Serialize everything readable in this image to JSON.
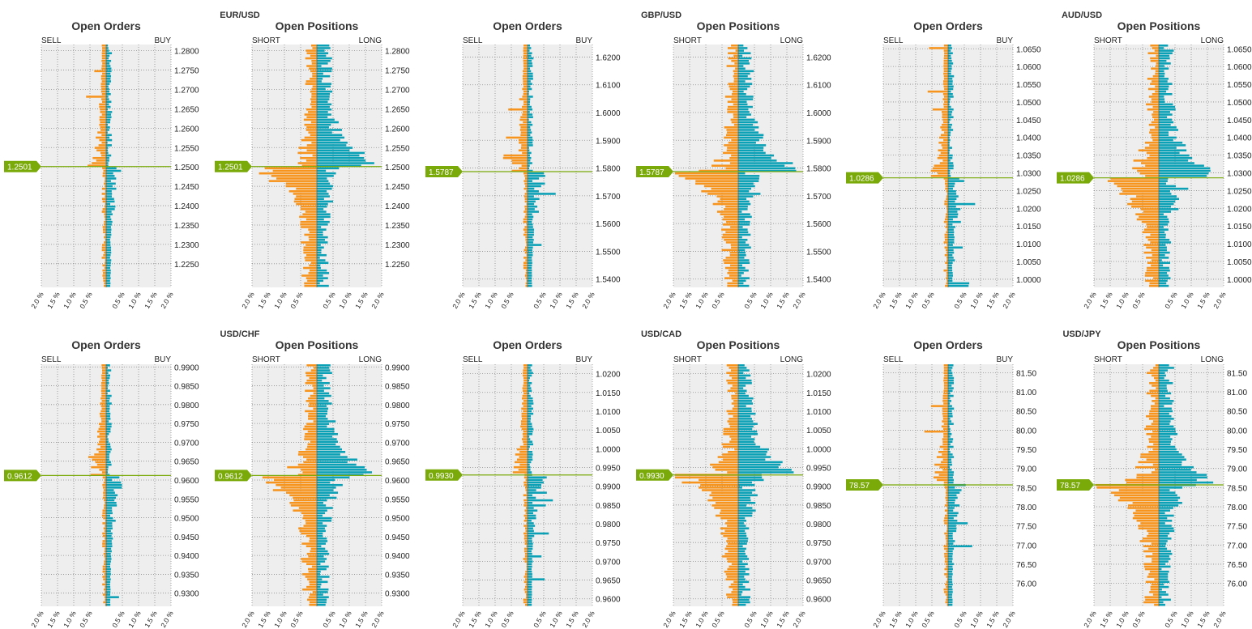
{
  "colors": {
    "sell": "#f7941d",
    "buy": "#0aa0b5",
    "price": "#7aaa0a",
    "plot_bg": "#eeeeee",
    "grid": "#8a8a8a"
  },
  "x_ticks": [
    "2.0 %",
    "1.5 %",
    "1.0 %",
    "0.5 %",
    "0.5 %",
    "1.0 %",
    "1.5 %",
    "2.0 %"
  ],
  "pairs": [
    {
      "name": "EUR/USD",
      "price": 1.2501,
      "price_label": "1.2501",
      "y_range": [
        1.2189,
        1.2816
      ],
      "y_ticks": [
        "1.2800",
        "1.2750",
        "1.2700",
        "1.2650",
        "1.2600",
        "1.2550",
        "1.2500",
        "1.2450",
        "1.2400",
        "1.2350",
        "1.2300",
        "1.2250"
      ],
      "orders_seed": 11,
      "positions_seed": 12
    },
    {
      "name": "GBP/USD",
      "price": 1.5787,
      "price_label": "1.5787",
      "y_range": [
        1.537,
        1.6245
      ],
      "y_ticks": [
        "1.6200",
        "1.6100",
        "1.6000",
        "1.5900",
        "1.5800",
        "1.5700",
        "1.5600",
        "1.5500",
        "1.5400"
      ],
      "orders_seed": 21,
      "positions_seed": 22
    },
    {
      "name": "AUD/USD",
      "price": 1.0286,
      "price_label": "1.0286",
      "y_range": [
        0.9977,
        1.0662
      ],
      "y_ticks": [
        "1.0650",
        "1.0600",
        "1.0550",
        "1.0500",
        "1.0450",
        "1.0400",
        "1.0350",
        "1.0300",
        "1.0250",
        "1.0200",
        "1.0150",
        "1.0100",
        "1.0050",
        "1.0000"
      ],
      "orders_seed": 31,
      "positions_seed": 32
    },
    {
      "name": "USD/CHF",
      "price": 0.9612,
      "price_label": "0.9612",
      "y_range": [
        0.9265,
        0.9907
      ],
      "y_ticks": [
        "0.9900",
        "0.9850",
        "0.9800",
        "0.9750",
        "0.9700",
        "0.9650",
        "0.9600",
        "0.9550",
        "0.9500",
        "0.9450",
        "0.9400",
        "0.9350",
        "0.9300"
      ],
      "orders_seed": 41,
      "positions_seed": 42
    },
    {
      "name": "USD/CAD",
      "price": 0.993,
      "price_label": "0.9930",
      "y_range": [
        0.958,
        1.0225
      ],
      "y_ticks": [
        "1.0200",
        "1.0150",
        "1.0100",
        "1.0050",
        "1.0000",
        "0.9950",
        "0.9900",
        "0.9850",
        "0.9800",
        "0.9750",
        "0.9700",
        "0.9650",
        "0.9600"
      ],
      "orders_seed": 51,
      "positions_seed": 52
    },
    {
      "name": "USD/JPY",
      "price": 78.57,
      "price_label": "78.57",
      "y_range": [
        75.4,
        81.72
      ],
      "y_ticks": [
        "81.50",
        "81.00",
        "80.50",
        "80.00",
        "79.50",
        "79.00",
        "78.50",
        "78.00",
        "77.50",
        "77.00",
        "76.50",
        "76.00"
      ],
      "orders_seed": 61,
      "positions_seed": 62
    }
  ],
  "chart_data": [
    {
      "type": "bar",
      "pair": "EUR/USD",
      "title": "Open Orders",
      "left_label": "SELL",
      "right_label": "BUY",
      "xlim": [
        -2.0,
        2.0
      ],
      "ylim": [
        1.2189,
        1.2816
      ],
      "current_price": 1.2501,
      "series": [
        {
          "name": "SELL",
          "orientation": "left"
        },
        {
          "name": "BUY",
          "orientation": "right"
        }
      ]
    },
    {
      "type": "bar",
      "pair": "EUR/USD",
      "title": "Open Positions",
      "left_label": "SHORT",
      "right_label": "LONG",
      "xlim": [
        -2.0,
        2.0
      ],
      "ylim": [
        1.2189,
        1.2816
      ],
      "current_price": 1.2501,
      "series": [
        {
          "name": "SHORT",
          "orientation": "left"
        },
        {
          "name": "LONG",
          "orientation": "right"
        }
      ]
    },
    {
      "type": "bar",
      "pair": "GBP/USD",
      "title": "Open Orders",
      "left_label": "SELL",
      "right_label": "BUY",
      "xlim": [
        -2.0,
        2.0
      ],
      "ylim": [
        1.537,
        1.6245
      ],
      "current_price": 1.5787
    },
    {
      "type": "bar",
      "pair": "GBP/USD",
      "title": "Open Positions",
      "left_label": "SHORT",
      "right_label": "LONG",
      "xlim": [
        -2.0,
        2.0
      ],
      "ylim": [
        1.537,
        1.6245
      ],
      "current_price": 1.5787
    },
    {
      "type": "bar",
      "pair": "AUD/USD",
      "title": "Open Orders",
      "left_label": "SELL",
      "right_label": "BUY",
      "xlim": [
        -2.0,
        2.0
      ],
      "ylim": [
        0.9977,
        1.0662
      ],
      "current_price": 1.0286
    },
    {
      "type": "bar",
      "pair": "AUD/USD",
      "title": "Open Positions",
      "left_label": "SHORT",
      "right_label": "LONG",
      "xlim": [
        -2.0,
        2.0
      ],
      "ylim": [
        0.9977,
        1.0662
      ],
      "current_price": 1.0286
    },
    {
      "type": "bar",
      "pair": "USD/CHF",
      "title": "Open Orders",
      "left_label": "SELL",
      "right_label": "BUY",
      "xlim": [
        -2.0,
        2.0
      ],
      "ylim": [
        0.9265,
        0.9907
      ],
      "current_price": 0.9612
    },
    {
      "type": "bar",
      "pair": "USD/CHF",
      "title": "Open Positions",
      "left_label": "SHORT",
      "right_label": "LONG",
      "xlim": [
        -2.0,
        2.0
      ],
      "ylim": [
        0.9265,
        0.9907
      ],
      "current_price": 0.9612
    },
    {
      "type": "bar",
      "pair": "USD/CAD",
      "title": "Open Orders",
      "left_label": "SELL",
      "right_label": "BUY",
      "xlim": [
        -2.0,
        2.0
      ],
      "ylim": [
        0.958,
        1.0225
      ],
      "current_price": 0.993
    },
    {
      "type": "bar",
      "pair": "USD/CAD",
      "title": "Open Positions",
      "left_label": "SHORT",
      "right_label": "LONG",
      "xlim": [
        -2.0,
        2.0
      ],
      "ylim": [
        0.958,
        1.0225
      ],
      "current_price": 0.993
    },
    {
      "type": "bar",
      "pair": "USD/JPY",
      "title": "Open Orders",
      "left_label": "SELL",
      "right_label": "BUY",
      "xlim": [
        -2.0,
        2.0
      ],
      "ylim": [
        75.4,
        81.72
      ],
      "current_price": 78.57
    },
    {
      "type": "bar",
      "pair": "USD/JPY",
      "title": "Open Positions",
      "left_label": "SHORT",
      "right_label": "LONG",
      "xlim": [
        -2.0,
        2.0
      ],
      "ylim": [
        75.4,
        81.72
      ],
      "current_price": 78.57
    }
  ]
}
